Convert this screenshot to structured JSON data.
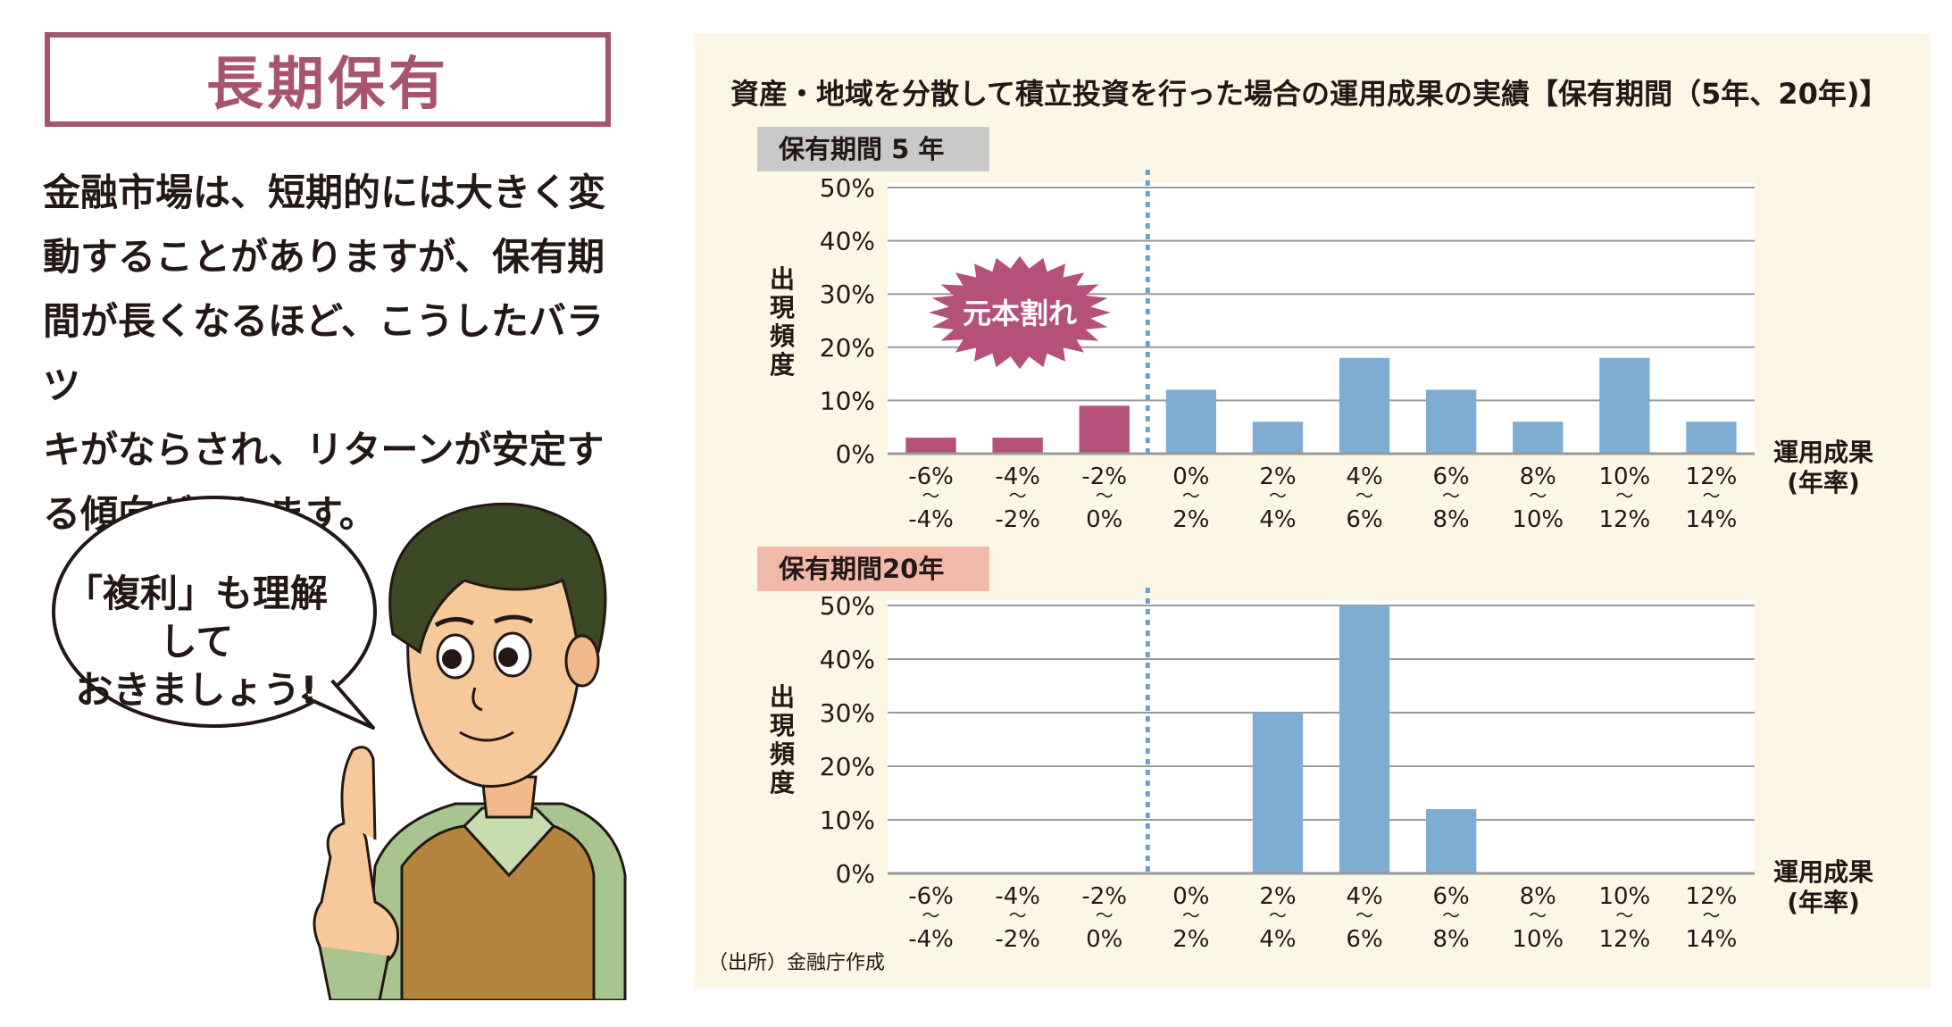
{
  "left": {
    "title": "長期保有",
    "body_lines": [
      "金融市場は、短期的には大きく変",
      "動することがありますが、保有期",
      "間が長くなるほど、こうしたバラツ",
      "キがならされ、リターンが安定す",
      "る傾向があります。"
    ],
    "bubble_lines": [
      "「複利」も理解して",
      "おきましょう!"
    ]
  },
  "chart_title": "資産・地域を分散して積立投資を行った場合の運用成果の実績【保有期間（5年、20年)】",
  "source": "（出所）金融庁作成",
  "colors": {
    "loss": "#b4507a",
    "gain": "#7eadd3",
    "panel": "#fbf7e4",
    "accent": "#a6546f"
  },
  "chart_data": [
    {
      "type": "bar",
      "title": "保有期間 5 年",
      "ylabel": "出現頻度",
      "xlabel": "運用成果(年率)",
      "xlabel_lines": [
        "運用成果",
        "(年率)"
      ],
      "ylim": [
        0,
        50
      ],
      "yticks": [
        "0%",
        "10%",
        "20%",
        "30%",
        "40%",
        "50%"
      ],
      "categories": [
        "-6%～-4%",
        "-4%～-2%",
        "-2%～0%",
        "0%～2%",
        "2%～4%",
        "4%～6%",
        "6%～8%",
        "8%～10%",
        "10%～12%",
        "12%～14%"
      ],
      "category_top": [
        "-6%",
        "-4%",
        "-2%",
        "0%",
        "2%",
        "4%",
        "6%",
        "8%",
        "10%",
        "12%"
      ],
      "category_bottom": [
        "-4%",
        "-2%",
        "0%",
        "2%",
        "4%",
        "6%",
        "8%",
        "10%",
        "12%",
        "14%"
      ],
      "values": [
        3,
        3,
        9,
        12,
        6,
        18,
        12,
        6,
        18,
        6
      ],
      "annotation": "元本割れ"
    },
    {
      "type": "bar",
      "title": "保有期間20年",
      "ylabel": "出現頻度",
      "xlabel": "運用成果(年率)",
      "xlabel_lines": [
        "運用成果",
        "(年率)"
      ],
      "ylim": [
        0,
        50
      ],
      "yticks": [
        "0%",
        "10%",
        "20%",
        "30%",
        "40%",
        "50%"
      ],
      "categories": [
        "-6%～-4%",
        "-4%～-2%",
        "-2%～0%",
        "0%～2%",
        "2%～4%",
        "4%～6%",
        "6%～8%",
        "8%～10%",
        "10%～12%",
        "12%～14%"
      ],
      "category_top": [
        "-6%",
        "-4%",
        "-2%",
        "0%",
        "2%",
        "4%",
        "6%",
        "8%",
        "10%",
        "12%"
      ],
      "category_bottom": [
        "-4%",
        "-2%",
        "0%",
        "2%",
        "4%",
        "6%",
        "8%",
        "10%",
        "12%",
        "14%"
      ],
      "values": [
        0,
        0,
        0,
        0,
        30,
        53,
        12,
        0,
        0,
        0
      ]
    }
  ]
}
